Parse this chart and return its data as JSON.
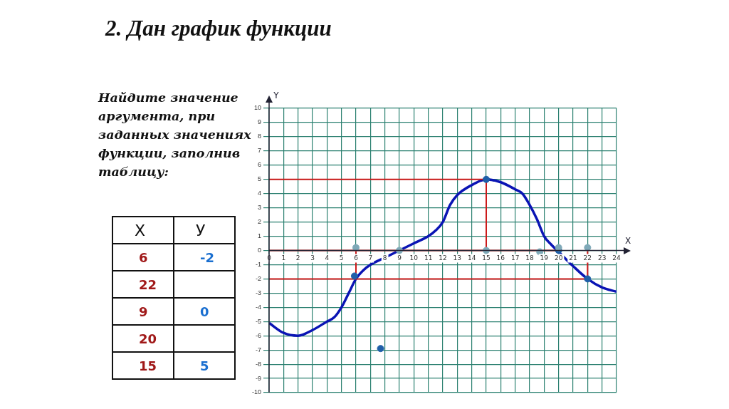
{
  "chart_data": {
    "type": "line",
    "title": "2. Дан график функции",
    "annotations": [
      "Найдите значение аргумента, при заданных значениях функции, заполнив таблицу:",
      "X",
      "У",
      "6",
      "-2",
      "22",
      null,
      "9",
      "0",
      "20",
      null,
      "15",
      "5"
    ],
    "xlabel": "X",
    "ylabel": "Y",
    "xlim": [
      0,
      24
    ],
    "xticks": [
      0,
      1,
      2,
      3,
      4,
      5,
      6,
      7,
      8,
      9,
      10,
      11,
      12,
      13,
      14,
      15,
      16,
      17,
      18,
      19,
      20,
      21,
      22,
      23,
      24
    ],
    "ylim": [
      -10,
      10
    ],
    "yticks": [
      -10,
      -9,
      -8,
      -7,
      -6,
      -5,
      -4,
      -3,
      -2,
      -1,
      0,
      1,
      2,
      3,
      4,
      5,
      6,
      7,
      8,
      9,
      10
    ],
    "grid": true,
    "legend": false,
    "series": [
      {
        "type": "line",
        "color": "#cc1a1a",
        "x": [
          0,
          20
        ],
        "values": [
          0,
          0
        ]
      },
      {
        "type": "line",
        "color": "#cc1a1a",
        "x": [
          0,
          15,
          15
        ],
        "values": [
          5,
          5,
          0
        ]
      },
      {
        "type": "line",
        "color": "#cc1a1a",
        "x": [
          0,
          22,
          22
        ],
        "values": [
          -2,
          -2,
          0
        ]
      },
      {
        "type": "line",
        "color": "#cc1a1a",
        "x": [
          6,
          6
        ],
        "values": [
          0,
          -2
        ]
      },
      {
        "type": "line",
        "color": "#0a14b4",
        "x": [
          0,
          1,
          2,
          3,
          4,
          4.5,
          5,
          5.5,
          6,
          6.5,
          7,
          8,
          9,
          10,
          11,
          11.5,
          12,
          12.5,
          13,
          14,
          15,
          16,
          17,
          17.5,
          18,
          18.5,
          19,
          19.5,
          20,
          21,
          22,
          23,
          24
        ],
        "values": [
          -5.1,
          -5.8,
          -6,
          -5.6,
          -5,
          -4.7,
          -4,
          -3,
          -2,
          -1.4,
          -1,
          -0.5,
          0,
          0.5,
          1,
          1.4,
          2,
          3.2,
          3.9,
          4.6,
          5,
          4.8,
          4.3,
          4,
          3.2,
          2.2,
          1,
          0.4,
          -0.1,
          -1.1,
          -2,
          -2.6,
          -2.9
        ]
      },
      {
        "type": "scatter",
        "color": "#7fa9b8",
        "x": [
          6,
          9,
          15,
          18.7,
          20,
          22
        ],
        "values": [
          0.2,
          0,
          0,
          -0.1,
          0.2,
          0.2
        ]
      },
      {
        "type": "scatter",
        "color": "#1f5fa8",
        "x": [
          5.9,
          7.7,
          15,
          20,
          22
        ],
        "values": [
          -1.8,
          -6.9,
          5,
          0,
          -2
        ]
      }
    ]
  }
}
